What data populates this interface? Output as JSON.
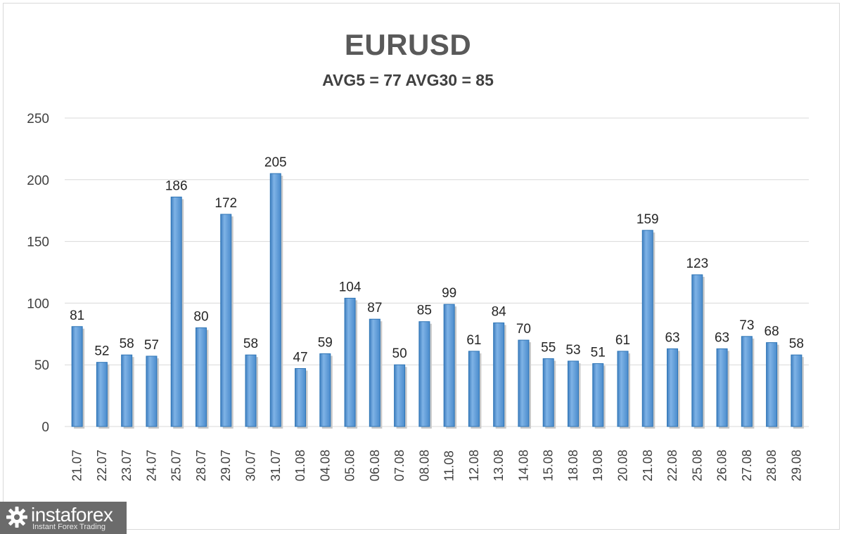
{
  "chart_data": {
    "type": "bar",
    "title": "EURUSD",
    "subtitle": "AVG5 = 77 AVG30 = 85",
    "categories": [
      "21.07",
      "22.07",
      "23.07",
      "24.07",
      "25.07",
      "28.07",
      "29.07",
      "30.07",
      "31.07",
      "01.08",
      "04.08",
      "05.08",
      "06.08",
      "07.08",
      "08.08",
      "11.08",
      "12.08",
      "13.08",
      "14.08",
      "15.08",
      "18.08",
      "19.08",
      "20.08",
      "21.08",
      "22.08",
      "25.08",
      "26.08",
      "27.08",
      "28.08",
      "29.08"
    ],
    "values": [
      81,
      52,
      58,
      57,
      186,
      80,
      172,
      58,
      205,
      47,
      59,
      104,
      87,
      50,
      85,
      99,
      61,
      84,
      70,
      55,
      53,
      51,
      61,
      159,
      63,
      123,
      63,
      73,
      68,
      58
    ],
    "yticks": [
      0,
      50,
      100,
      150,
      200,
      250
    ],
    "ylim": [
      0,
      250
    ],
    "xlabel": "",
    "ylabel": "",
    "grid": true,
    "bar_color": "#5b9bd5",
    "bar_edge_color": "#2e75b6",
    "grid_color": "#d9d9d9"
  },
  "watermark": {
    "brand": "instaforex",
    "tagline": "Instant Forex Trading",
    "icon": "gear-icon"
  }
}
